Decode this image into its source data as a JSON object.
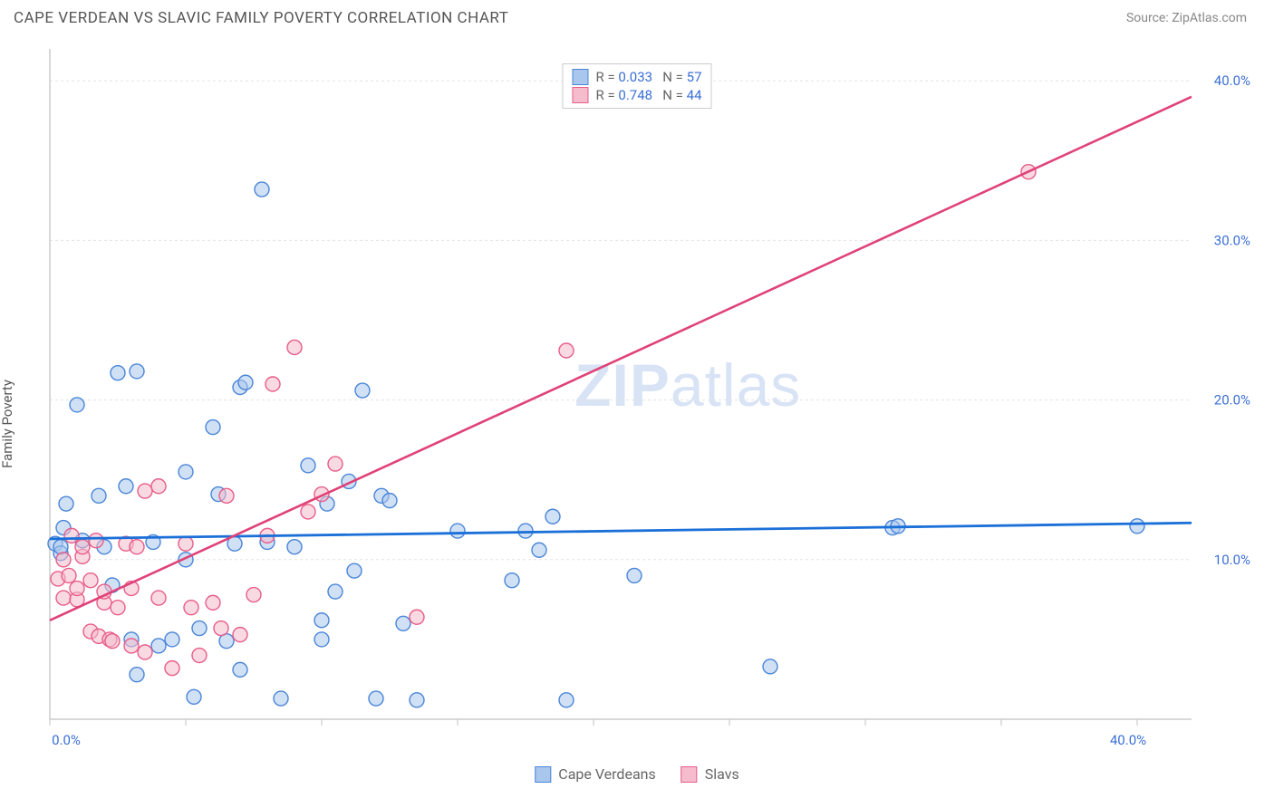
{
  "header": {
    "title": "CAPE VERDEAN VS SLAVIC FAMILY POVERTY CORRELATION CHART",
    "source_prefix": "Source: ",
    "source_name": "ZipAtlas.com"
  },
  "ylabel": "Family Poverty",
  "watermark": {
    "part1": "ZIP",
    "part2": "atlas"
  },
  "legend_top": {
    "series": [
      {
        "r_label": "R =",
        "r_value": "0.033",
        "n_label": "N =",
        "n_value": "57",
        "color_fill": "#a9c6ec",
        "color_stroke": "#4a86d8"
      },
      {
        "r_label": "R =",
        "r_value": "0.748",
        "n_label": "N =",
        "n_value": "44",
        "color_fill": "#f4bccc",
        "color_stroke": "#e85d8a"
      }
    ]
  },
  "legend_bottom": {
    "items": [
      {
        "label": "Cape Verdeans",
        "fill": "#a9c6ec",
        "stroke": "#4a86d8"
      },
      {
        "label": "Slavs",
        "fill": "#f4bccc",
        "stroke": "#e85d8a"
      }
    ]
  },
  "chart": {
    "type": "scatter",
    "background_color": "#ffffff",
    "grid_color": "#e4e4e4",
    "axis_color": "#cccccc",
    "tick_label_color": "#3b6fd6",
    "xlim": [
      0,
      42
    ],
    "ylim": [
      0,
      42
    ],
    "x_ticks_labeled": [
      {
        "v": 0,
        "label": "0.0%"
      },
      {
        "v": 40,
        "label": "40.0%"
      }
    ],
    "x_ticks_minor": [
      5,
      10,
      15,
      20,
      25,
      30,
      35
    ],
    "y_ticks_labeled": [
      {
        "v": 10,
        "label": "10.0%"
      },
      {
        "v": 20,
        "label": "20.0%"
      },
      {
        "v": 30,
        "label": "30.0%"
      },
      {
        "v": 40,
        "label": "40.0%"
      }
    ],
    "marker_radius": 8,
    "marker_stroke_width": 1.4,
    "marker_fill_opacity": 0.55,
    "series": [
      {
        "name": "Cape Verdeans",
        "fill": "#a9c6ec",
        "stroke": "#4a86d8",
        "trend": {
          "y_at_x0": 11.3,
          "y_at_xmax": 12.3,
          "color": "#1a6fd8",
          "width": 2.8
        },
        "points": [
          [
            0.2,
            11.0
          ],
          [
            0.4,
            10.4
          ],
          [
            0.4,
            10.8
          ],
          [
            0.5,
            12.0
          ],
          [
            0.6,
            13.5
          ],
          [
            1.0,
            19.7
          ],
          [
            1.2,
            11.2
          ],
          [
            1.8,
            14.0
          ],
          [
            2.0,
            10.8
          ],
          [
            2.3,
            8.4
          ],
          [
            2.5,
            21.7
          ],
          [
            2.8,
            14.6
          ],
          [
            3.0,
            5.0
          ],
          [
            3.2,
            2.8
          ],
          [
            3.2,
            21.8
          ],
          [
            3.8,
            11.1
          ],
          [
            4.0,
            4.6
          ],
          [
            4.5,
            5.0
          ],
          [
            5.0,
            15.5
          ],
          [
            5.0,
            10.0
          ],
          [
            5.3,
            1.4
          ],
          [
            5.5,
            5.7
          ],
          [
            6.0,
            18.3
          ],
          [
            6.2,
            14.1
          ],
          [
            6.5,
            4.9
          ],
          [
            6.8,
            11.0
          ],
          [
            7.0,
            3.1
          ],
          [
            7.0,
            20.8
          ],
          [
            7.2,
            21.1
          ],
          [
            7.8,
            33.2
          ],
          [
            8.0,
            11.1
          ],
          [
            8.5,
            1.3
          ],
          [
            9.0,
            10.8
          ],
          [
            9.5,
            15.9
          ],
          [
            10.0,
            5.0
          ],
          [
            10.0,
            6.2
          ],
          [
            10.2,
            13.5
          ],
          [
            10.5,
            8.0
          ],
          [
            11.0,
            14.9
          ],
          [
            11.2,
            9.3
          ],
          [
            11.5,
            20.6
          ],
          [
            12.0,
            1.3
          ],
          [
            12.2,
            14.0
          ],
          [
            12.5,
            13.7
          ],
          [
            13.0,
            6.0
          ],
          [
            13.5,
            1.2
          ],
          [
            15.0,
            11.8
          ],
          [
            17.0,
            8.7
          ],
          [
            17.5,
            11.8
          ],
          [
            18.0,
            10.6
          ],
          [
            18.5,
            12.7
          ],
          [
            19.0,
            1.2
          ],
          [
            21.5,
            9.0
          ],
          [
            26.5,
            3.3
          ],
          [
            31.0,
            12.0
          ],
          [
            31.2,
            12.1
          ],
          [
            40.0,
            12.1
          ]
        ]
      },
      {
        "name": "Slavs",
        "fill": "#f4bccc",
        "stroke": "#e85d8a",
        "trend": {
          "y_at_x0": 6.2,
          "y_at_xmax": 39.0,
          "color": "#e04277",
          "width": 2.6
        },
        "points": [
          [
            0.3,
            8.8
          ],
          [
            0.5,
            7.6
          ],
          [
            0.5,
            10.0
          ],
          [
            0.7,
            9.0
          ],
          [
            0.8,
            11.5
          ],
          [
            1.0,
            7.5
          ],
          [
            1.0,
            8.2
          ],
          [
            1.2,
            10.2
          ],
          [
            1.2,
            10.8
          ],
          [
            1.5,
            5.5
          ],
          [
            1.5,
            8.7
          ],
          [
            1.7,
            11.2
          ],
          [
            1.8,
            5.2
          ],
          [
            2.0,
            7.3
          ],
          [
            2.0,
            8.0
          ],
          [
            2.2,
            5.0
          ],
          [
            2.3,
            4.9
          ],
          [
            2.5,
            7.0
          ],
          [
            2.8,
            11.0
          ],
          [
            3.0,
            4.6
          ],
          [
            3.0,
            8.2
          ],
          [
            3.2,
            10.8
          ],
          [
            3.5,
            4.2
          ],
          [
            3.5,
            14.3
          ],
          [
            4.0,
            7.6
          ],
          [
            4.0,
            14.6
          ],
          [
            4.5,
            3.2
          ],
          [
            5.0,
            11.0
          ],
          [
            5.2,
            7.0
          ],
          [
            5.5,
            4.0
          ],
          [
            6.0,
            7.3
          ],
          [
            6.3,
            5.7
          ],
          [
            6.5,
            14.0
          ],
          [
            7.0,
            5.3
          ],
          [
            7.5,
            7.8
          ],
          [
            8.0,
            11.5
          ],
          [
            8.2,
            21.0
          ],
          [
            9.0,
            23.3
          ],
          [
            9.5,
            13.0
          ],
          [
            10.0,
            14.1
          ],
          [
            10.5,
            16.0
          ],
          [
            13.5,
            6.4
          ],
          [
            19.0,
            23.1
          ],
          [
            36.0,
            34.3
          ]
        ]
      }
    ]
  }
}
